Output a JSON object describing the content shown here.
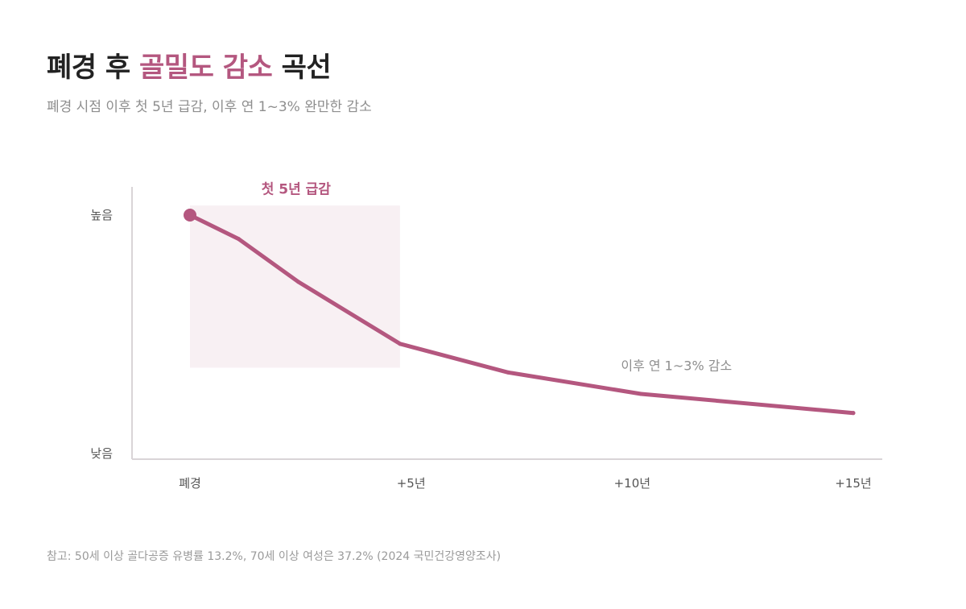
{
  "header": {
    "title_prefix": "폐경 후 ",
    "title_accent": "골밀도 감소",
    "title_suffix": " 곡선",
    "subtitle": "폐경 시점 이후 첫 5년 급감, 이후 연 1~3% 완만한 감소"
  },
  "footnote": "참고: 50세 이상 골다공증 유병률 13.2%, 70세 이상 여성은 37.2% (2024 국민건강영양조사)",
  "colors": {
    "accent": "#b4577f",
    "highlight_band": "#f8f0f3",
    "axis": "#d9d4d7",
    "title": "#222222",
    "muted": "#8e8e8e"
  },
  "chart_data": {
    "type": "line",
    "title": "폐경 후 골밀도 감소 곡선",
    "subtitle": "폐경 시점 이후 첫 5년 급감, 이후 연 1~3% 완만한 감소",
    "x_tick_labels": [
      "폐경",
      "+5년",
      "+10년",
      "+15년"
    ],
    "x_tick_values": [
      0,
      5,
      10,
      15
    ],
    "y_tick_labels": [
      "높음",
      "낮음"
    ],
    "y_tick_values": [
      100,
      0
    ],
    "xlim": [
      -1.3,
      15.6
    ],
    "ylim": [
      0,
      100
    ],
    "grid": false,
    "legend": "none",
    "series": [
      {
        "x": [
          0,
          1.1,
          2.45,
          4.75,
          7.2,
          10.2,
          15
        ],
        "values": [
          100,
          90,
          72,
          46,
          34,
          25,
          17
        ],
        "color": "#b4577f",
        "start_marker": true
      }
    ],
    "highlight_region": {
      "x": [
        0,
        4.75
      ],
      "y": [
        36,
        104
      ]
    },
    "annotations": [
      {
        "text": "첫 5년 급감",
        "x": 2.4,
        "y": 109,
        "style": "bold"
      },
      {
        "text": "이후 연 1~3% 감소",
        "x": 11.0,
        "y": 35,
        "style": "plain"
      }
    ]
  }
}
